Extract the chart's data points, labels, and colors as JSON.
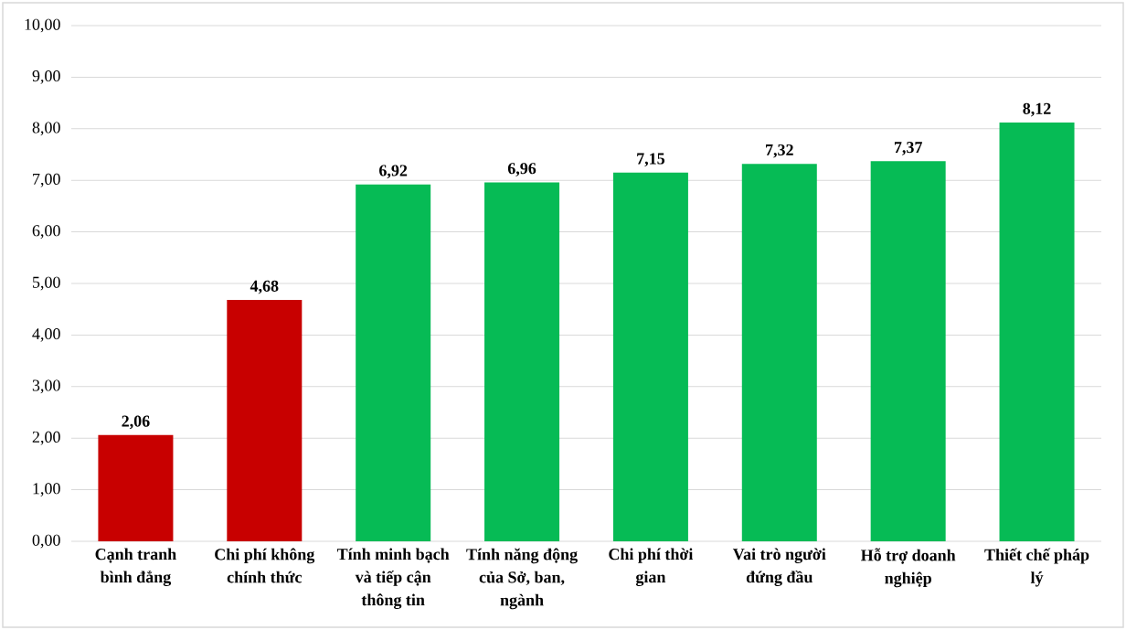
{
  "chart_data": {
    "type": "bar",
    "categories": [
      "Cạnh tranh bình đẳng",
      "Chi phí không chính thức",
      "Tính minh bạch và tiếp cận thông tin",
      "Tính năng động của Sở, ban, ngành",
      "Chi phí thời gian",
      "Vai trò người đứng đầu",
      "Hỗ trợ doanh nghiệp",
      "Thiết chế pháp lý"
    ],
    "values": [
      2.06,
      4.68,
      6.92,
      6.96,
      7.15,
      7.32,
      7.37,
      8.12
    ],
    "colors": [
      "#c80000",
      "#c80000",
      "#06bb55",
      "#06bb55",
      "#06bb55",
      "#06bb55",
      "#06bb55",
      "#06bb55"
    ],
    "value_labels": [
      "2,06",
      "4,68",
      "6,92",
      "6,96",
      "7,15",
      "7,32",
      "7,37",
      "8,12"
    ],
    "ylim": [
      0,
      10
    ],
    "yticks": [
      {
        "value": 0,
        "label": "0,00"
      },
      {
        "value": 1,
        "label": "1,00"
      },
      {
        "value": 2,
        "label": "2,00"
      },
      {
        "value": 3,
        "label": "3,00"
      },
      {
        "value": 4,
        "label": "4,00"
      },
      {
        "value": 5,
        "label": "5,00"
      },
      {
        "value": 6,
        "label": "6,00"
      },
      {
        "value": 7,
        "label": "7,00"
      },
      {
        "value": 8,
        "label": "8,00"
      },
      {
        "value": 9,
        "label": "9,00"
      },
      {
        "value": 10,
        "label": "10,00"
      }
    ],
    "grid": "y"
  }
}
